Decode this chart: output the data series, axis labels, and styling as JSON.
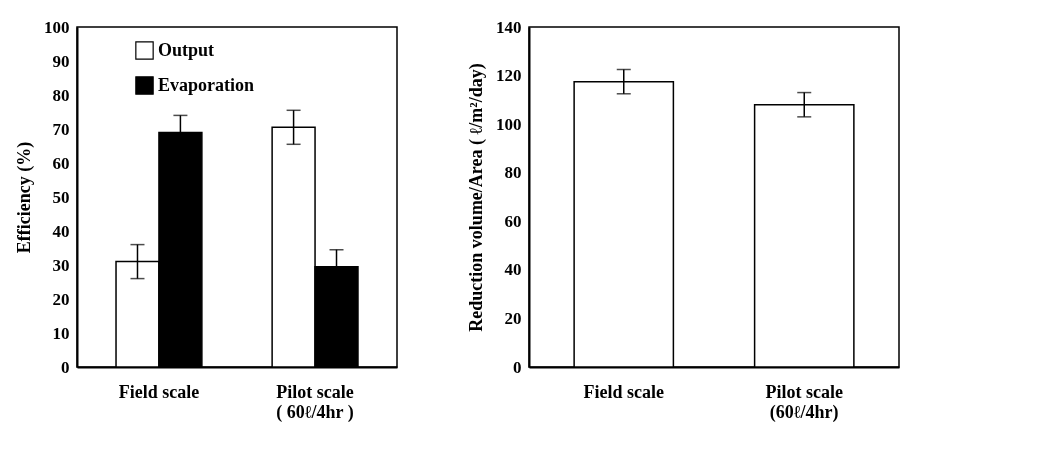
{
  "chart_data": [
    {
      "type": "bar",
      "ylabel": "Efficiency (%)",
      "categories": [
        "Field scale",
        "Pilot scale\n( 60ℓ/4hr )"
      ],
      "ylim": [
        0,
        100
      ],
      "yticks": [
        0,
        10,
        20,
        30,
        40,
        50,
        60,
        70,
        80,
        90,
        100
      ],
      "legend": "top left",
      "grid": false,
      "series": [
        {
          "name": "Output",
          "color": "#ffffff",
          "values": [
            31,
            70.5
          ],
          "errors": [
            5,
            5
          ]
        },
        {
          "name": "Evaporation",
          "color": "#000000",
          "values": [
            69,
            29.5
          ],
          "errors": [
            5,
            5
          ]
        }
      ]
    },
    {
      "type": "bar",
      "ylabel": "Reduction volume/Area ( ℓ/m²/day)",
      "categories": [
        "Field scale",
        "Pilot scale\n(60ℓ/4hr)"
      ],
      "ylim": [
        0,
        140
      ],
      "yticks": [
        0,
        20,
        40,
        60,
        80,
        100,
        120,
        140
      ],
      "grid": false,
      "series": [
        {
          "color": "#ffffff",
          "values": [
            117.5,
            108
          ],
          "errors": [
            5,
            5
          ]
        }
      ]
    }
  ]
}
